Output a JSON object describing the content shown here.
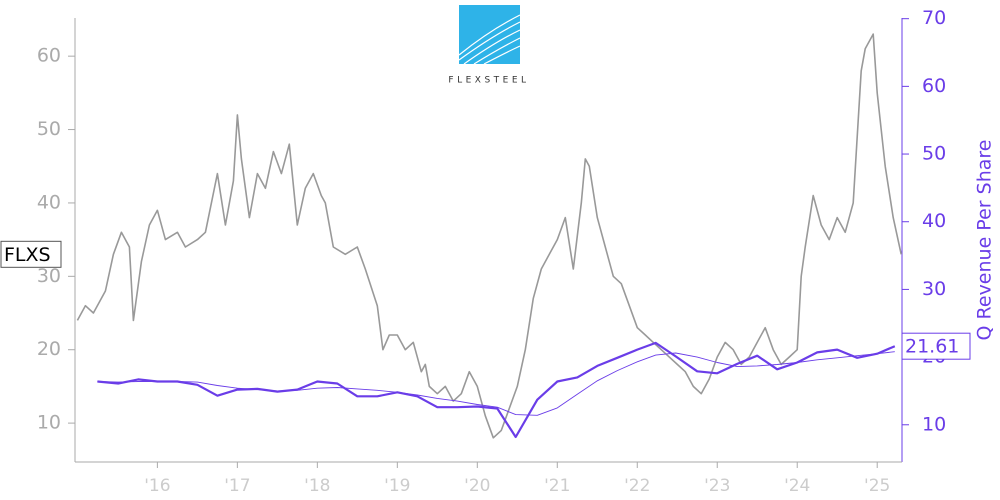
{
  "chart_data": {
    "type": "line",
    "logo_text": "FLEXSTEEL",
    "y2label": "Q Revenue Per Share",
    "xlim": [
      2014.97,
      2025.31
    ],
    "xticks": [
      {
        "value": 2016,
        "label": "'16"
      },
      {
        "value": 2017,
        "label": "'17"
      },
      {
        "value": 2018,
        "label": "'18"
      },
      {
        "value": 2019,
        "label": "'19"
      },
      {
        "value": 2020,
        "label": "'20"
      },
      {
        "value": 2021,
        "label": "'21"
      },
      {
        "value": 2022,
        "label": "'22"
      },
      {
        "value": 2023,
        "label": "'23"
      },
      {
        "value": 2024,
        "label": "'24"
      },
      {
        "value": 2025,
        "label": "'25"
      }
    ],
    "ylim": [
      4.7,
      65.2
    ],
    "yticks": [
      10,
      20,
      30,
      40,
      50,
      60
    ],
    "y2lim": [
      4.5,
      70.1
    ],
    "y2ticks": [
      10,
      20,
      30,
      40,
      50,
      60,
      70
    ],
    "series": [
      {
        "name": "FLXS",
        "color": "#999999",
        "axis": "y",
        "x": [
          2015.0,
          2015.1,
          2015.2,
          2015.35,
          2015.45,
          2015.55,
          2015.65,
          2015.7,
          2015.8,
          2015.9,
          2016.0,
          2016.1,
          2016.25,
          2016.35,
          2016.5,
          2016.6,
          2016.75,
          2016.85,
          2016.95,
          2017.0,
          2017.05,
          2017.15,
          2017.25,
          2017.35,
          2017.45,
          2017.55,
          2017.65,
          2017.75,
          2017.85,
          2017.95,
          2018.05,
          2018.1,
          2018.2,
          2018.35,
          2018.5,
          2018.6,
          2018.75,
          2018.82,
          2018.9,
          2019.0,
          2019.1,
          2019.2,
          2019.3,
          2019.35,
          2019.4,
          2019.5,
          2019.6,
          2019.7,
          2019.8,
          2019.9,
          2020.0,
          2020.1,
          2020.2,
          2020.3,
          2020.4,
          2020.5,
          2020.6,
          2020.7,
          2020.8,
          2020.9,
          2021.0,
          2021.1,
          2021.2,
          2021.3,
          2021.35,
          2021.4,
          2021.5,
          2021.6,
          2021.7,
          2021.8,
          2021.9,
          2022.0,
          2022.1,
          2022.2,
          2022.3,
          2022.4,
          2022.5,
          2022.6,
          2022.7,
          2022.8,
          2022.9,
          2023.0,
          2023.1,
          2023.2,
          2023.3,
          2023.4,
          2023.5,
          2023.6,
          2023.7,
          2023.8,
          2023.9,
          2024.0,
          2024.05,
          2024.1,
          2024.2,
          2024.3,
          2024.4,
          2024.5,
          2024.6,
          2024.7,
          2024.8,
          2024.85,
          2024.95,
          2025.0,
          2025.05,
          2025.1,
          2025.2,
          2025.3
        ],
        "values": [
          24,
          26,
          25,
          28,
          33,
          36,
          34,
          24,
          32,
          37,
          39,
          35,
          36,
          34,
          35,
          36,
          44,
          37,
          43,
          52,
          46,
          38,
          44,
          42,
          47,
          44,
          48,
          37,
          42,
          44,
          41,
          40,
          34,
          33,
          34,
          31,
          26,
          20,
          22,
          22,
          20,
          21,
          17,
          18,
          15,
          14,
          15,
          13,
          14,
          17,
          15,
          11,
          8,
          9,
          12,
          15,
          20,
          27,
          31,
          33,
          35,
          38,
          31,
          40,
          46,
          45,
          38,
          34,
          30,
          29,
          26,
          23,
          22,
          21,
          20,
          19,
          18,
          17,
          15,
          14,
          16,
          19,
          21,
          20,
          18,
          19,
          21,
          23,
          20,
          18,
          19,
          20,
          30,
          34,
          41,
          37,
          35,
          38,
          36,
          40,
          58,
          61,
          63,
          55,
          50,
          45,
          38,
          33
        ]
      },
      {
        "color": "#6a3de8",
        "axis": "y2",
        "end_label": "21.61",
        "x": [
          2015.25,
          2015.51,
          2015.76,
          2016.0,
          2016.25,
          2016.5,
          2016.75,
          2017.0,
          2017.25,
          2017.5,
          2017.75,
          2018.0,
          2018.25,
          2018.5,
          2018.75,
          2019.0,
          2019.25,
          2019.5,
          2019.75,
          2020.0,
          2020.25,
          2020.48,
          2020.75,
          2021.0,
          2021.25,
          2021.5,
          2021.75,
          2022.0,
          2022.23,
          2022.48,
          2022.75,
          2023.0,
          2023.25,
          2023.5,
          2023.75,
          2024.0,
          2024.25,
          2024.5,
          2024.75,
          2025.0,
          2025.22
        ],
        "values": [
          16.4,
          16.1,
          16.7,
          16.4,
          16.4,
          15.9,
          14.3,
          15.2,
          15.3,
          14.9,
          15.2,
          16.4,
          16.1,
          14.2,
          14.2,
          14.8,
          14.2,
          12.6,
          12.6,
          12.7,
          12.4,
          8.2,
          13.7,
          16.4,
          17.0,
          18.7,
          19.9,
          21.1,
          22.1,
          20.1,
          17.9,
          17.6,
          19.0,
          20.2,
          18.2,
          19.2,
          20.7,
          21.1,
          19.9,
          20.5,
          21.61
        ]
      },
      {
        "color": "#6a3de8",
        "axis": "y2",
        "x": [
          2015.25,
          2015.51,
          2015.76,
          2016.0,
          2016.25,
          2016.5,
          2016.75,
          2017.0,
          2017.25,
          2017.5,
          2017.75,
          2018.0,
          2018.25,
          2018.5,
          2018.75,
          2019.0,
          2019.25,
          2019.5,
          2019.75,
          2020.0,
          2020.25,
          2020.48,
          2020.75,
          2021.0,
          2021.25,
          2021.5,
          2021.75,
          2022.0,
          2022.23,
          2022.48,
          2022.75,
          2023.0,
          2023.25,
          2023.5,
          2023.75,
          2024.0,
          2024.25,
          2024.5,
          2024.75,
          2025.0,
          2025.22
        ],
        "values": [
          16.4,
          16.3,
          16.4,
          16.4,
          16.4,
          16.3,
          15.8,
          15.4,
          15.2,
          15.0,
          15.1,
          15.4,
          15.5,
          15.3,
          15.1,
          14.8,
          14.4,
          13.9,
          13.5,
          13.0,
          12.6,
          11.5,
          11.4,
          12.5,
          14.5,
          16.5,
          18.0,
          19.3,
          20.3,
          20.6,
          20.0,
          19.2,
          18.6,
          18.7,
          18.9,
          19.2,
          19.6,
          19.9,
          20.2,
          20.5,
          20.8
        ]
      }
    ]
  }
}
